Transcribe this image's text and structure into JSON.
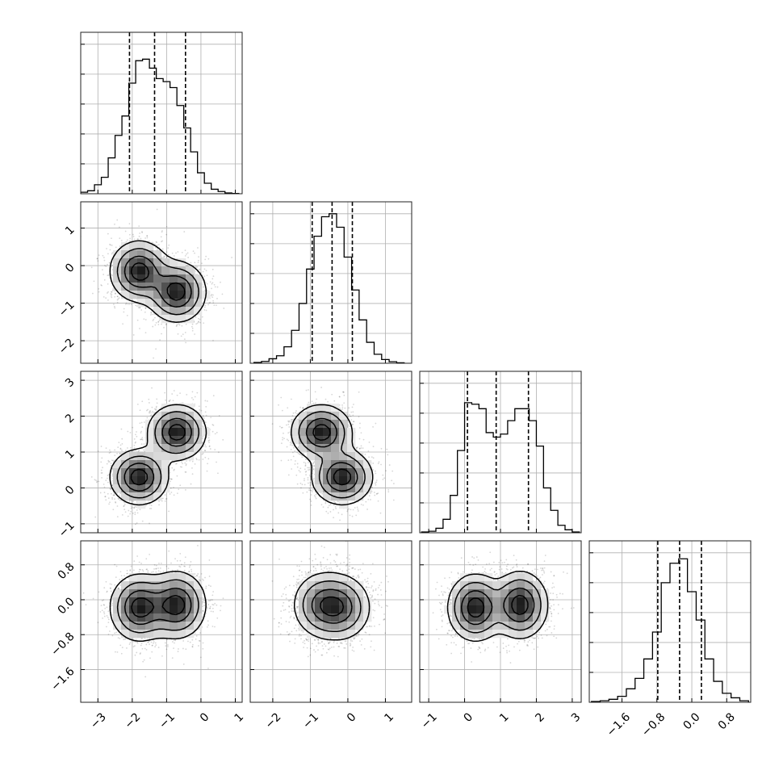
{
  "chart_data": {
    "type": "corner",
    "parameters": [
      "",
      "",
      "",
      ""
    ],
    "ranges": [
      [
        -3.5,
        1.2
      ],
      [
        -2.6,
        1.7
      ],
      [
        -1.25,
        3.25
      ],
      [
        -2.35,
        1.35
      ]
    ],
    "ticks": [
      [
        -3,
        -2,
        -1,
        0,
        1
      ],
      [
        -2,
        -1,
        0,
        1
      ],
      [
        -1,
        0,
        1,
        2,
        3
      ],
      [
        -1.6,
        -0.8,
        0.0,
        0.8
      ]
    ],
    "tick_labels": [
      [
        "−3",
        "−2",
        "−1",
        "0",
        "1"
      ],
      [
        "−2",
        "−1",
        "0",
        "1"
      ],
      [
        "−1",
        "0",
        "1",
        "2",
        "3"
      ],
      [
        "−1.6",
        "−0.8",
        "0.0",
        "0.8"
      ]
    ],
    "quantiles": [
      [
        -2.08,
        -1.35,
        -0.45
      ],
      [
        -0.95,
        -0.42,
        0.12
      ],
      [
        0.08,
        0.88,
        1.78
      ],
      [
        -0.78,
        -0.28,
        0.22
      ]
    ],
    "histograms": [
      {
        "x": [
          -3.4,
          -3.2,
          -3.0,
          -2.8,
          -2.6,
          -2.4,
          -2.2,
          -2.0,
          -1.8,
          -1.6,
          -1.4,
          -1.2,
          -1.0,
          -0.8,
          -0.6,
          -0.4,
          -0.2,
          0.0,
          0.2,
          0.4,
          0.6,
          0.8,
          1.0
        ],
        "y": [
          0.01,
          0.02,
          0.06,
          0.11,
          0.24,
          0.39,
          0.52,
          0.74,
          0.89,
          0.9,
          0.84,
          0.77,
          0.75,
          0.71,
          0.59,
          0.44,
          0.28,
          0.14,
          0.07,
          0.03,
          0.015,
          0.005,
          0.002
        ]
      },
      {
        "x": [
          -2.4,
          -2.2,
          -2.0,
          -1.8,
          -1.6,
          -1.4,
          -1.2,
          -1.0,
          -0.8,
          -0.6,
          -0.4,
          -0.2,
          0.0,
          0.2,
          0.4,
          0.6,
          0.8,
          1.0,
          1.2,
          1.4
        ],
        "y": [
          0.005,
          0.012,
          0.03,
          0.05,
          0.11,
          0.22,
          0.4,
          0.63,
          0.85,
          0.98,
          1.0,
          0.91,
          0.71,
          0.49,
          0.29,
          0.14,
          0.06,
          0.025,
          0.01,
          0.003
        ]
      },
      {
        "x": [
          -1.1,
          -0.9,
          -0.7,
          -0.5,
          -0.3,
          -0.1,
          0.1,
          0.3,
          0.5,
          0.7,
          0.9,
          1.1,
          1.3,
          1.5,
          1.7,
          1.9,
          2.1,
          2.3,
          2.5,
          2.7,
          2.9,
          3.1
        ],
        "y": [
          0.005,
          0.01,
          0.03,
          0.09,
          0.25,
          0.55,
          0.87,
          0.86,
          0.83,
          0.67,
          0.64,
          0.66,
          0.75,
          0.83,
          0.83,
          0.75,
          0.58,
          0.3,
          0.15,
          0.05,
          0.02,
          0.005
        ]
      },
      {
        "x": [
          -2.2,
          -2.0,
          -1.8,
          -1.6,
          -1.4,
          -1.2,
          -1.0,
          -0.8,
          -0.6,
          -0.4,
          -0.2,
          0.0,
          0.2,
          0.4,
          0.6,
          0.8,
          1.0,
          1.2
        ],
        "y": [
          0.005,
          0.01,
          0.02,
          0.04,
          0.09,
          0.16,
          0.29,
          0.47,
          0.8,
          0.93,
          0.96,
          0.74,
          0.55,
          0.29,
          0.14,
          0.06,
          0.03,
          0.01
        ]
      }
    ],
    "modes": [
      {
        "mean": [
          -1.8,
          -0.15,
          0.3,
          -0.18
        ],
        "std": [
          0.42,
          0.4,
          0.38,
          0.38
        ],
        "weight": 0.5
      },
      {
        "mean": [
          -0.7,
          -0.7,
          1.55,
          -0.12
        ],
        "std": [
          0.42,
          0.4,
          0.38,
          0.38
        ],
        "weight": 0.5
      }
    ],
    "grid": true
  }
}
